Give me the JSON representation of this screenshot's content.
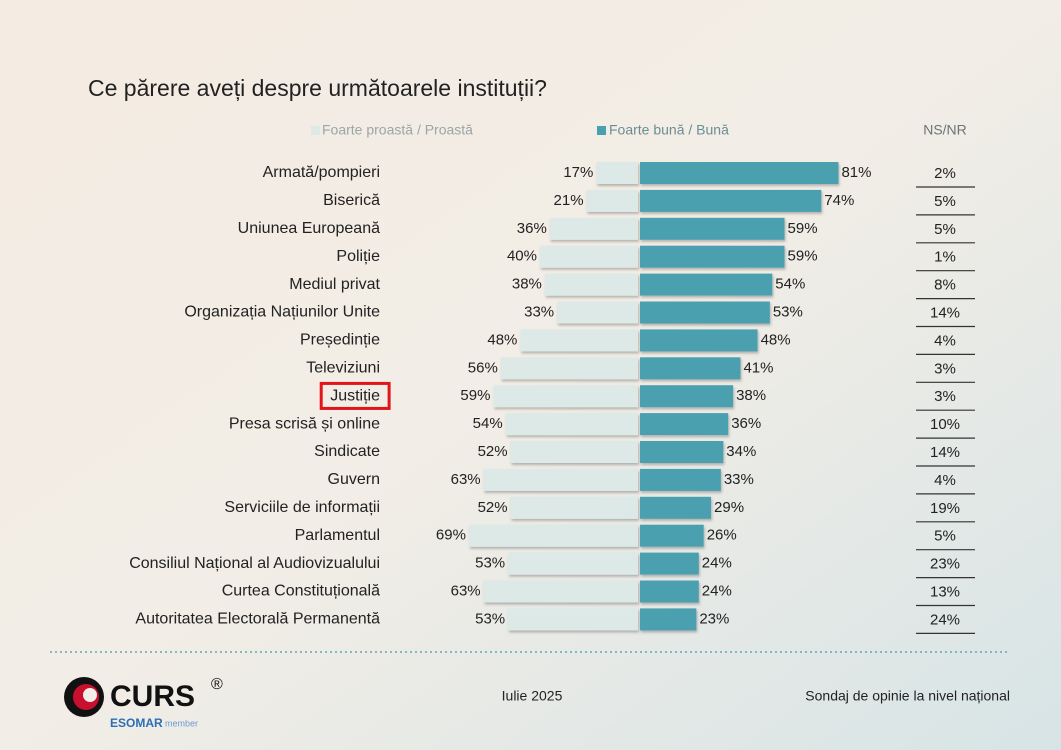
{
  "chart_data": {
    "type": "diverging_bar",
    "title": "Ce părere aveți despre următoarele instituții?",
    "categories": [
      "Armată/pompieri",
      "Biserică",
      "Uniunea Europeană",
      "Poliție",
      "Mediul privat",
      "Organizația Națiunilor Unite",
      "Președinție",
      "Televiziuni",
      "Justiție",
      "Presa scrisă și online",
      "Sindicate",
      "Guvern",
      "Serviciile de informații",
      "Parlamentul",
      "Consiliul Național al Audiovizualului",
      "Curtea Constituțională",
      "Autoritatea Electorală Permanentă"
    ],
    "series": [
      {
        "name": "Foarte proastă / Proastă",
        "color": "#dde9e6",
        "values": [
          17,
          21,
          36,
          40,
          38,
          33,
          48,
          56,
          59,
          54,
          52,
          63,
          52,
          69,
          53,
          63,
          53
        ],
        "value_labels": [
          "17%",
          "21%",
          "36%",
          "40%",
          "38%",
          "33%",
          "48%",
          "56%",
          "59%",
          "54%",
          "52%",
          "63%",
          "52%",
          "69%",
          "53%",
          "63%",
          "53%"
        ]
      },
      {
        "name": "Foarte bună / Bună",
        "color": "#4ba0af",
        "values": [
          81,
          74,
          59,
          59,
          54,
          53,
          48,
          41,
          38,
          36,
          34,
          33,
          29,
          26,
          24,
          24,
          23
        ],
        "value_labels": [
          "81%",
          "74%",
          "59%",
          "59%",
          "54%",
          "53%",
          "48%",
          "41%",
          "38%",
          "36%",
          "34%",
          "33%",
          "29%",
          "26%",
          "24%",
          "24%",
          "23%"
        ]
      },
      {
        "name": "NS/NR",
        "values": [
          2,
          5,
          5,
          1,
          8,
          14,
          4,
          3,
          3,
          10,
          14,
          4,
          19,
          5,
          23,
          13,
          24
        ],
        "value_labels": [
          "2%",
          "5%",
          "5%",
          "1%",
          "8%",
          "14%",
          "4%",
          "3%",
          "3%",
          "10%",
          "14%",
          "4%",
          "19%",
          "5%",
          "23%",
          "13%",
          "24%"
        ]
      }
    ],
    "highlight": 8
  },
  "footer": {
    "logo": "CURS",
    "logo_mark": "®",
    "member": "ESOMAR",
    "member_note": "member",
    "date": "Iulie 2025",
    "note": "Sondaj de opinie la nivel național"
  }
}
